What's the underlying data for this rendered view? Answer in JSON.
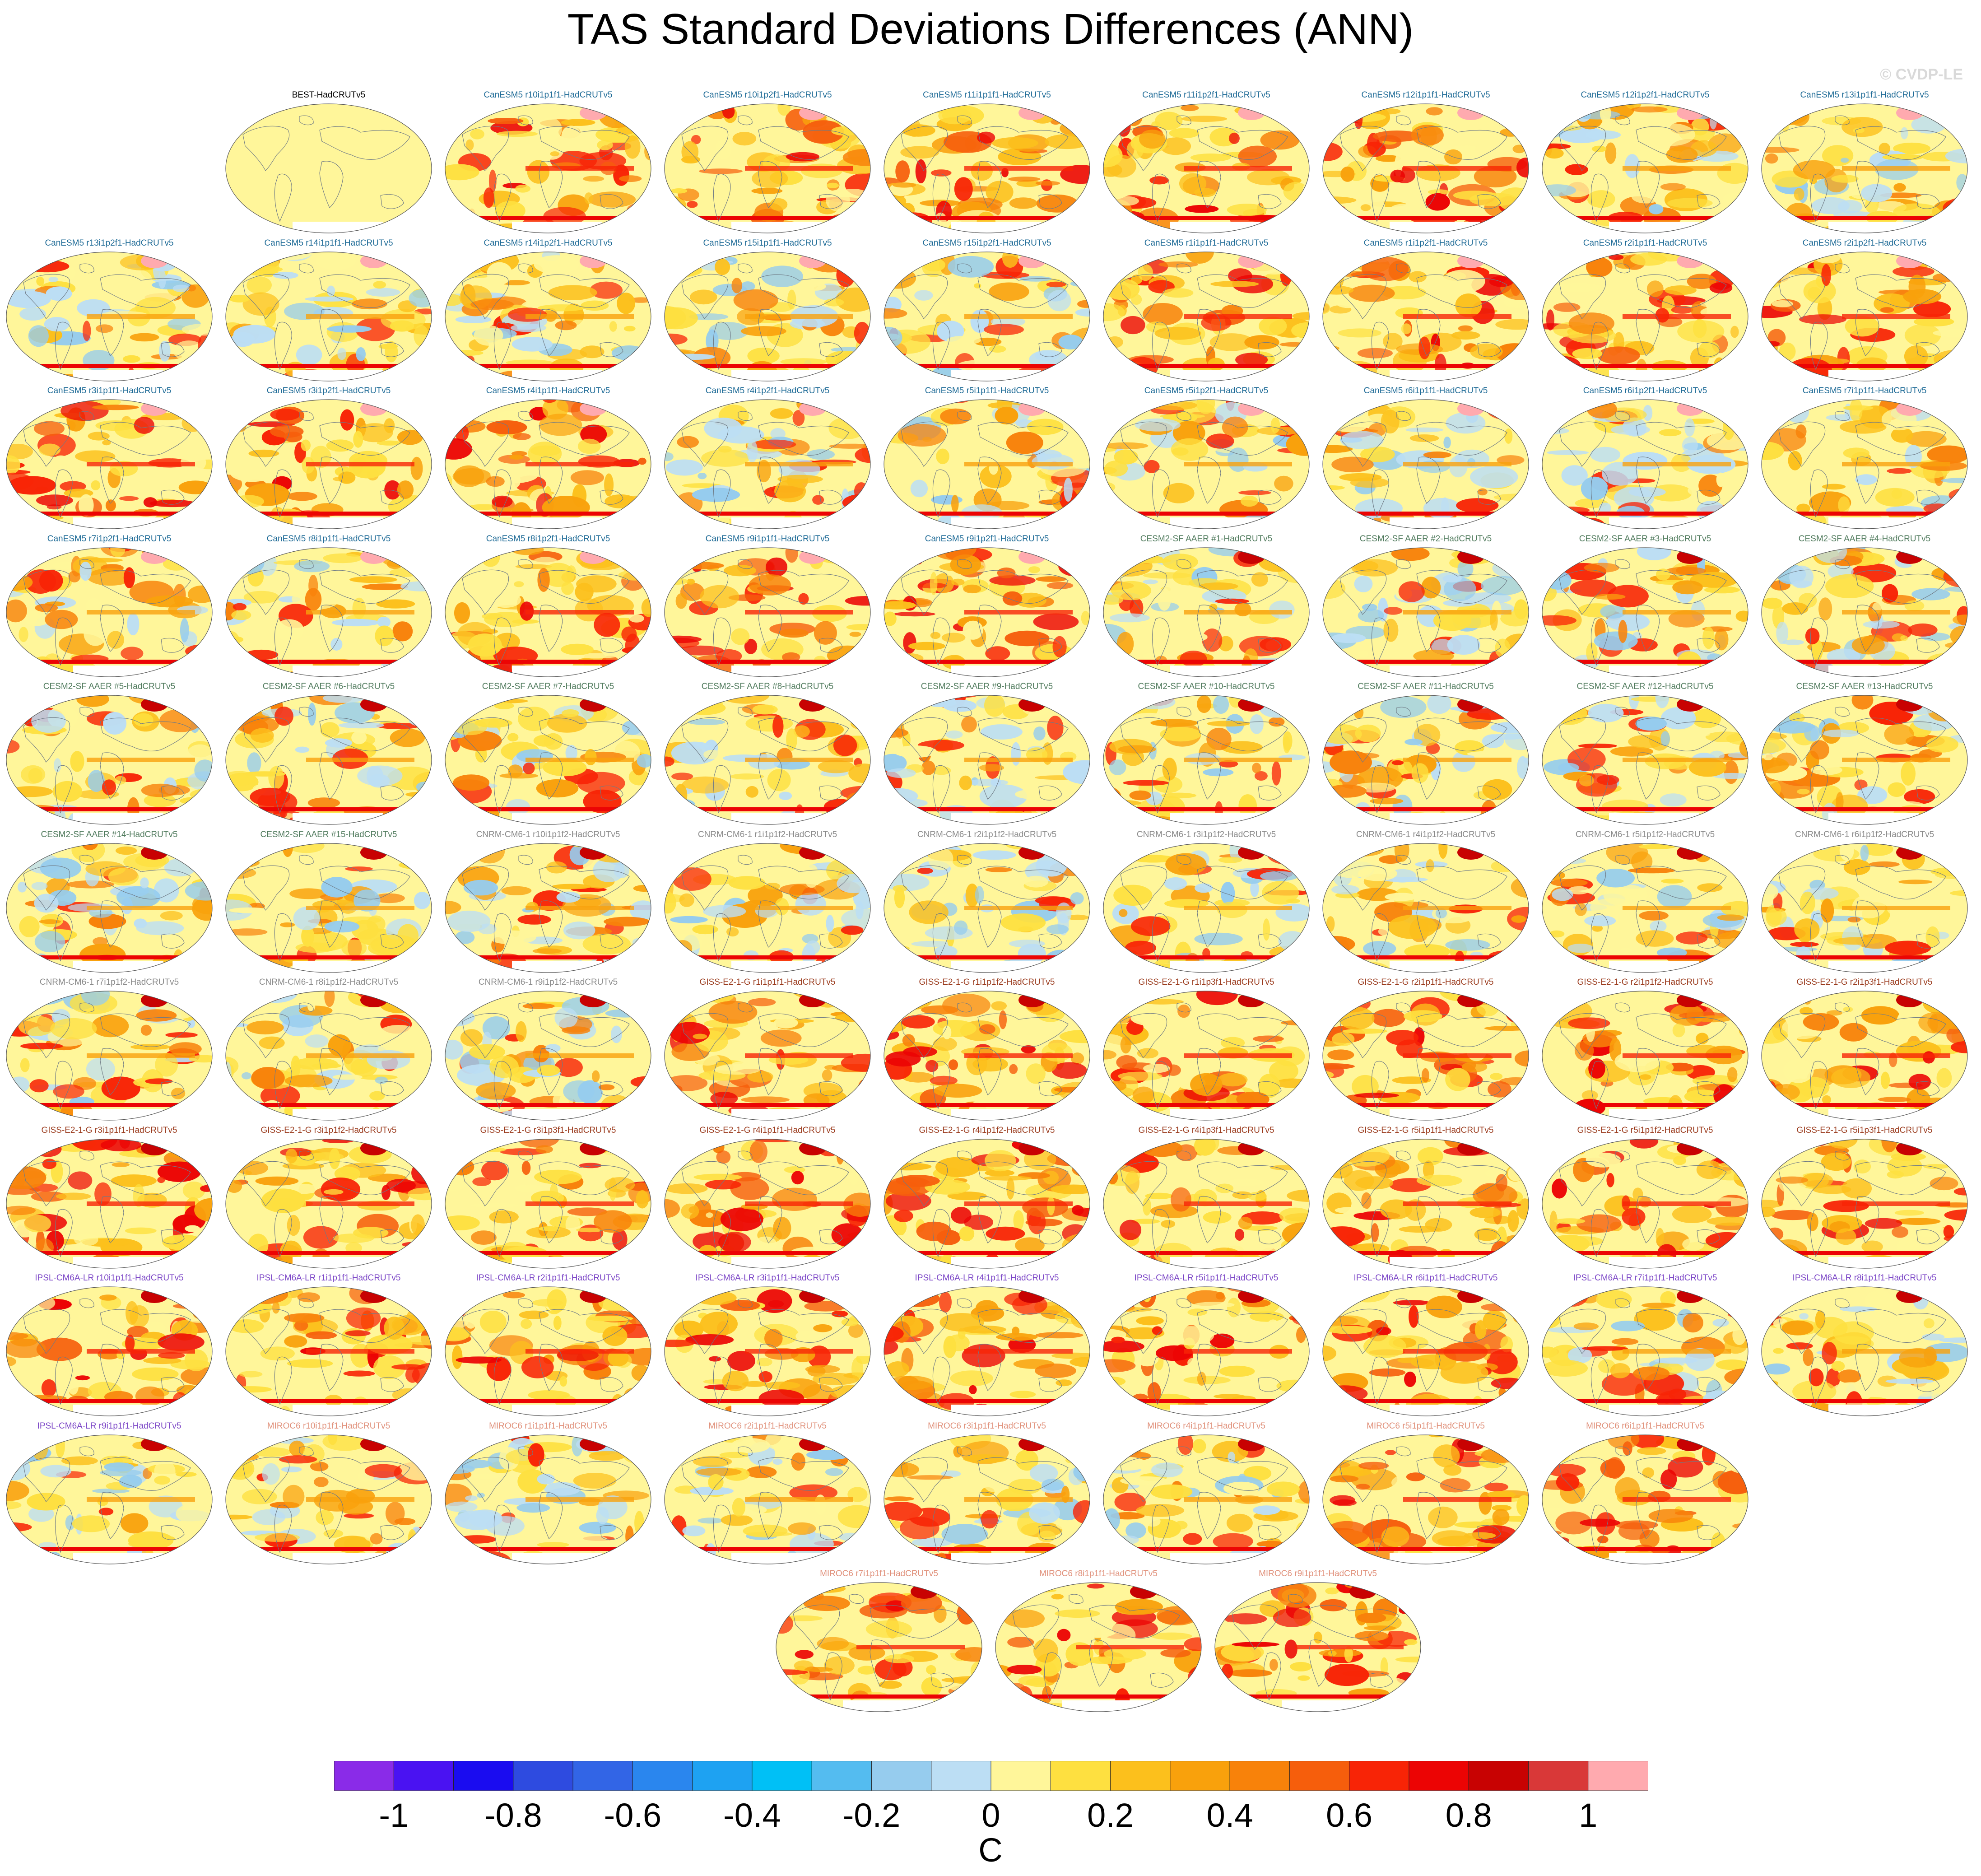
{
  "title": "TAS Standard Deviations Differences (ANN)",
  "watermark": "© CVDP-LE",
  "chart_data": {
    "type": "heatmap",
    "title": "TAS Standard Deviations Differences (ANN)",
    "units": "C",
    "colorbar": {
      "levels": [
        -1.1,
        -1.0,
        -0.9,
        -0.8,
        -0.7,
        -0.6,
        -0.5,
        -0.4,
        -0.3,
        -0.2,
        -0.1,
        0,
        0.1,
        0.2,
        0.3,
        0.4,
        0.5,
        0.6,
        0.7,
        0.8,
        0.9,
        1.0,
        1.1
      ],
      "tick_labels": [
        "-1",
        "-0.8",
        "-0.6",
        "-0.4",
        "-0.2",
        "0",
        "0.2",
        "0.4",
        "0.6",
        "0.8",
        "1"
      ],
      "tick_values": [
        -1,
        -0.8,
        -0.6,
        -0.4,
        -0.2,
        0,
        0.2,
        0.4,
        0.6,
        0.8,
        1
      ],
      "colors": [
        "#8a2be8",
        "#4a12f2",
        "#1a0cf0",
        "#2e4be0",
        "#3265e6",
        "#2a86ee",
        "#1ea2f2",
        "#00c0f6",
        "#54bcf0",
        "#96ccee",
        "#bcdef4",
        "#fff69a",
        "#fee040",
        "#fcc01c",
        "#f9a10c",
        "#f8820a",
        "#f65e0c",
        "#f82406",
        "#ec0404",
        "#c80202",
        "#d93838",
        "#ffaaaf"
      ]
    },
    "panel_groups": [
      {
        "model": "BEST",
        "color": "#000000"
      },
      {
        "model": "CanESM5",
        "color": "#1d6a96"
      },
      {
        "model": "CESM2-SF AAER",
        "color": "#4f7a5c"
      },
      {
        "model": "CNRM-CM6-1",
        "color": "#8a8a8a"
      },
      {
        "model": "GISS-E2-1-G",
        "color": "#9a3a1c"
      },
      {
        "model": "IPSL-CM6A-LR",
        "color": "#7a44c6"
      },
      {
        "model": "MIROC6",
        "color": "#e0907a"
      }
    ],
    "panels": [
      {
        "title": "BEST-HadCRUTv5",
        "group": 0
      },
      {
        "title": "CanESM5 r10i1p1f1-HadCRUTv5",
        "group": 1
      },
      {
        "title": "CanESM5 r10i1p2f1-HadCRUTv5",
        "group": 1
      },
      {
        "title": "CanESM5 r11i1p1f1-HadCRUTv5",
        "group": 1
      },
      {
        "title": "CanESM5 r11i1p2f1-HadCRUTv5",
        "group": 1
      },
      {
        "title": "CanESM5 r12i1p1f1-HadCRUTv5",
        "group": 1
      },
      {
        "title": "CanESM5 r12i1p2f1-HadCRUTv5",
        "group": 1
      },
      {
        "title": "CanESM5 r13i1p1f1-HadCRUTv5",
        "group": 1
      },
      {
        "title": "CanESM5 r13i1p2f1-HadCRUTv5",
        "group": 1
      },
      {
        "title": "CanESM5 r14i1p1f1-HadCRUTv5",
        "group": 1
      },
      {
        "title": "CanESM5 r14i1p2f1-HadCRUTv5",
        "group": 1
      },
      {
        "title": "CanESM5 r15i1p1f1-HadCRUTv5",
        "group": 1
      },
      {
        "title": "CanESM5 r15i1p2f1-HadCRUTv5",
        "group": 1
      },
      {
        "title": "CanESM5 r1i1p1f1-HadCRUTv5",
        "group": 1
      },
      {
        "title": "CanESM5 r1i1p2f1-HadCRUTv5",
        "group": 1
      },
      {
        "title": "CanESM5 r2i1p1f1-HadCRUTv5",
        "group": 1
      },
      {
        "title": "CanESM5 r2i1p2f1-HadCRUTv5",
        "group": 1
      },
      {
        "title": "CanESM5 r3i1p1f1-HadCRUTv5",
        "group": 1
      },
      {
        "title": "CanESM5 r3i1p2f1-HadCRUTv5",
        "group": 1
      },
      {
        "title": "CanESM5 r4i1p1f1-HadCRUTv5",
        "group": 1
      },
      {
        "title": "CanESM5 r4i1p2f1-HadCRUTv5",
        "group": 1
      },
      {
        "title": "CanESM5 r5i1p1f1-HadCRUTv5",
        "group": 1
      },
      {
        "title": "CanESM5 r5i1p2f1-HadCRUTv5",
        "group": 1
      },
      {
        "title": "CanESM5 r6i1p1f1-HadCRUTv5",
        "group": 1
      },
      {
        "title": "CanESM5 r6i1p2f1-HadCRUTv5",
        "group": 1
      },
      {
        "title": "CanESM5 r7i1p1f1-HadCRUTv5",
        "group": 1
      },
      {
        "title": "CanESM5 r7i1p2f1-HadCRUTv5",
        "group": 1
      },
      {
        "title": "CanESM5 r8i1p1f1-HadCRUTv5",
        "group": 1
      },
      {
        "title": "CanESM5 r8i1p2f1-HadCRUTv5",
        "group": 1
      },
      {
        "title": "CanESM5 r9i1p1f1-HadCRUTv5",
        "group": 1
      },
      {
        "title": "CanESM5 r9i1p2f1-HadCRUTv5",
        "group": 1
      },
      {
        "title": "CESM2-SF AAER #1-HadCRUTv5",
        "group": 2
      },
      {
        "title": "CESM2-SF AAER #2-HadCRUTv5",
        "group": 2
      },
      {
        "title": "CESM2-SF AAER #3-HadCRUTv5",
        "group": 2
      },
      {
        "title": "CESM2-SF AAER #4-HadCRUTv5",
        "group": 2
      },
      {
        "title": "CESM2-SF AAER #5-HadCRUTv5",
        "group": 2
      },
      {
        "title": "CESM2-SF AAER #6-HadCRUTv5",
        "group": 2
      },
      {
        "title": "CESM2-SF AAER #7-HadCRUTv5",
        "group": 2
      },
      {
        "title": "CESM2-SF AAER #8-HadCRUTv5",
        "group": 2
      },
      {
        "title": "CESM2-SF AAER #9-HadCRUTv5",
        "group": 2
      },
      {
        "title": "CESM2-SF AAER #10-HadCRUTv5",
        "group": 2
      },
      {
        "title": "CESM2-SF AAER #11-HadCRUTv5",
        "group": 2
      },
      {
        "title": "CESM2-SF AAER #12-HadCRUTv5",
        "group": 2
      },
      {
        "title": "CESM2-SF AAER #13-HadCRUTv5",
        "group": 2
      },
      {
        "title": "CESM2-SF AAER #14-HadCRUTv5",
        "group": 2
      },
      {
        "title": "CESM2-SF AAER #15-HadCRUTv5",
        "group": 2
      },
      {
        "title": "CNRM-CM6-1 r10i1p1f2-HadCRUTv5",
        "group": 3
      },
      {
        "title": "CNRM-CM6-1 r1i1p1f2-HadCRUTv5",
        "group": 3
      },
      {
        "title": "CNRM-CM6-1 r2i1p1f2-HadCRUTv5",
        "group": 3
      },
      {
        "title": "CNRM-CM6-1 r3i1p1f2-HadCRUTv5",
        "group": 3
      },
      {
        "title": "CNRM-CM6-1 r4i1p1f2-HadCRUTv5",
        "group": 3
      },
      {
        "title": "CNRM-CM6-1 r5i1p1f2-HadCRUTv5",
        "group": 3
      },
      {
        "title": "CNRM-CM6-1 r6i1p1f2-HadCRUTv5",
        "group": 3
      },
      {
        "title": "CNRM-CM6-1 r7i1p1f2-HadCRUTv5",
        "group": 3
      },
      {
        "title": "CNRM-CM6-1 r8i1p1f2-HadCRUTv5",
        "group": 3
      },
      {
        "title": "CNRM-CM6-1 r9i1p1f2-HadCRUTv5",
        "group": 3
      },
      {
        "title": "GISS-E2-1-G r1i1p1f1-HadCRUTv5",
        "group": 4
      },
      {
        "title": "GISS-E2-1-G r1i1p1f2-HadCRUTv5",
        "group": 4
      },
      {
        "title": "GISS-E2-1-G r1i1p3f1-HadCRUTv5",
        "group": 4
      },
      {
        "title": "GISS-E2-1-G r2i1p1f1-HadCRUTv5",
        "group": 4
      },
      {
        "title": "GISS-E2-1-G r2i1p1f2-HadCRUTv5",
        "group": 4
      },
      {
        "title": "GISS-E2-1-G r2i1p3f1-HadCRUTv5",
        "group": 4
      },
      {
        "title": "GISS-E2-1-G r3i1p1f1-HadCRUTv5",
        "group": 4
      },
      {
        "title": "GISS-E2-1-G r3i1p1f2-HadCRUTv5",
        "group": 4
      },
      {
        "title": "GISS-E2-1-G r3i1p3f1-HadCRUTv5",
        "group": 4
      },
      {
        "title": "GISS-E2-1-G r4i1p1f1-HadCRUTv5",
        "group": 4
      },
      {
        "title": "GISS-E2-1-G r4i1p1f2-HadCRUTv5",
        "group": 4
      },
      {
        "title": "GISS-E2-1-G r4i1p3f1-HadCRUTv5",
        "group": 4
      },
      {
        "title": "GISS-E2-1-G r5i1p1f1-HadCRUTv5",
        "group": 4
      },
      {
        "title": "GISS-E2-1-G r5i1p1f2-HadCRUTv5",
        "group": 4
      },
      {
        "title": "GISS-E2-1-G r5i1p3f1-HadCRUTv5",
        "group": 4
      },
      {
        "title": "IPSL-CM6A-LR r10i1p1f1-HadCRUTv5",
        "group": 5
      },
      {
        "title": "IPSL-CM6A-LR r1i1p1f1-HadCRUTv5",
        "group": 5
      },
      {
        "title": "IPSL-CM6A-LR r2i1p1f1-HadCRUTv5",
        "group": 5
      },
      {
        "title": "IPSL-CM6A-LR r3i1p1f1-HadCRUTv5",
        "group": 5
      },
      {
        "title": "IPSL-CM6A-LR r4i1p1f1-HadCRUTv5",
        "group": 5
      },
      {
        "title": "IPSL-CM6A-LR r5i1p1f1-HadCRUTv5",
        "group": 5
      },
      {
        "title": "IPSL-CM6A-LR r6i1p1f1-HadCRUTv5",
        "group": 5
      },
      {
        "title": "IPSL-CM6A-LR r7i1p1f1-HadCRUTv5",
        "group": 5
      },
      {
        "title": "IPSL-CM6A-LR r8i1p1f1-HadCRUTv5",
        "group": 5
      },
      {
        "title": "IPSL-CM6A-LR r9i1p1f1-HadCRUTv5",
        "group": 5
      },
      {
        "title": "MIROC6 r10i1p1f1-HadCRUTv5",
        "group": 6
      },
      {
        "title": "MIROC6 r1i1p1f1-HadCRUTv5",
        "group": 6
      },
      {
        "title": "MIROC6 r2i1p1f1-HadCRUTv5",
        "group": 6
      },
      {
        "title": "MIROC6 r3i1p1f1-HadCRUTv5",
        "group": 6
      },
      {
        "title": "MIROC6 r4i1p1f1-HadCRUTv5",
        "group": 6
      },
      {
        "title": "MIROC6 r5i1p1f1-HadCRUTv5",
        "group": 6
      },
      {
        "title": "MIROC6 r6i1p1f1-HadCRUTv5",
        "group": 6
      },
      {
        "title": "MIROC6 r7i1p1f1-HadCRUTv5",
        "group": 6
      },
      {
        "title": "MIROC6 r8i1p1f1-HadCRUTv5",
        "group": 6
      },
      {
        "title": "MIROC6 r9i1p1f1-HadCRUTv5",
        "group": 6
      }
    ]
  }
}
